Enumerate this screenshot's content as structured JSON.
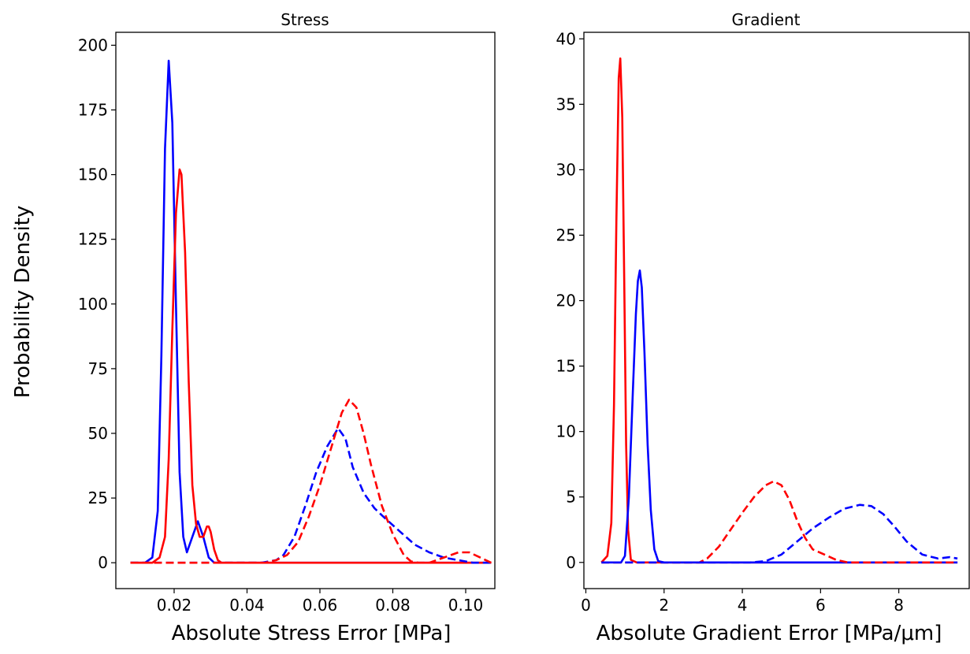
{
  "figure": {
    "ylabel": "Probability Density"
  },
  "chart_data": [
    {
      "type": "line",
      "title": "Stress",
      "xlabel": "Absolute Stress Error  [MPa]",
      "ylabel": "Probability Density",
      "xlim": [
        0.004,
        0.108
      ],
      "ylim": [
        -10,
        205
      ],
      "xticks": [
        0.02,
        0.04,
        0.06,
        0.08,
        0.1
      ],
      "xtick_labels": [
        "0.02",
        "0.04",
        "0.06",
        "0.08",
        "0.10"
      ],
      "yticks": [
        0,
        25,
        50,
        75,
        100,
        125,
        150,
        175,
        200
      ],
      "ytick_labels": [
        "0",
        "25",
        "50",
        "75",
        "100",
        "125",
        "150",
        "175",
        "200"
      ],
      "grid": false,
      "series": [
        {
          "color": "#0000ff",
          "dash": "solid",
          "x": [
            0.008,
            0.012,
            0.014,
            0.0155,
            0.0165,
            0.0175,
            0.0185,
            0.0195,
            0.0205,
            0.0215,
            0.0225,
            0.0235,
            0.025,
            0.0265,
            0.028,
            0.0295,
            0.031,
            0.033,
            0.04,
            0.107
          ],
          "y": [
            0,
            0,
            2,
            20,
            80,
            160,
            194,
            170,
            100,
            35,
            10,
            4,
            10,
            16,
            10,
            2,
            0,
            0,
            0,
            0
          ]
        },
        {
          "color": "#ff0000",
          "dash": "solid",
          "x": [
            0.008,
            0.014,
            0.016,
            0.0175,
            0.0185,
            0.0195,
            0.0205,
            0.0215,
            0.022,
            0.023,
            0.024,
            0.025,
            0.026,
            0.027,
            0.028,
            0.029,
            0.0295,
            0.03,
            0.031,
            0.032,
            0.033,
            0.04,
            0.107
          ],
          "y": [
            0,
            0,
            2,
            10,
            40,
            90,
            135,
            152,
            150,
            120,
            70,
            30,
            15,
            10,
            10,
            14,
            14,
            12,
            5,
            1,
            0,
            0,
            0
          ]
        },
        {
          "color": "#0000ff",
          "dash": "dashed",
          "x": [
            0.008,
            0.044,
            0.048,
            0.05,
            0.053,
            0.056,
            0.059,
            0.062,
            0.065,
            0.067,
            0.069,
            0.072,
            0.075,
            0.078,
            0.082,
            0.086,
            0.09,
            0.094,
            0.098,
            0.102,
            0.107
          ],
          "y": [
            0,
            0,
            1,
            3,
            10,
            22,
            35,
            45,
            52,
            48,
            37,
            27,
            21,
            17,
            12,
            7,
            4,
            2,
            1,
            0,
            0
          ]
        },
        {
          "color": "#ff0000",
          "dash": "dashed",
          "x": [
            0.008,
            0.045,
            0.048,
            0.051,
            0.054,
            0.057,
            0.06,
            0.063,
            0.066,
            0.068,
            0.07,
            0.072,
            0.074,
            0.077,
            0.08,
            0.083,
            0.085,
            0.087,
            0.09,
            0.094,
            0.098,
            0.101,
            0.104,
            0.107
          ],
          "y": [
            0,
            0,
            1,
            3,
            8,
            18,
            30,
            44,
            58,
            63,
            60,
            50,
            38,
            22,
            11,
            3,
            0.5,
            0,
            0,
            2,
            4,
            4,
            2,
            0
          ]
        }
      ]
    },
    {
      "type": "line",
      "title": "Gradient",
      "xlabel": "Absolute Gradient Error  [MPa/μm]",
      "ylabel": "",
      "xlim": [
        -0.05,
        9.8
      ],
      "ylim": [
        -2,
        40.5
      ],
      "xticks": [
        0,
        2,
        4,
        6,
        8
      ],
      "xtick_labels": [
        "0",
        "2",
        "4",
        "6",
        "8"
      ],
      "yticks": [
        0,
        5,
        10,
        15,
        20,
        25,
        30,
        35,
        40
      ],
      "ytick_labels": [
        "0",
        "5",
        "10",
        "15",
        "20",
        "25",
        "30",
        "35",
        "40"
      ],
      "grid": false,
      "series": [
        {
          "color": "#ff0000",
          "dash": "solid",
          "x": [
            0.4,
            0.55,
            0.65,
            0.72,
            0.78,
            0.84,
            0.88,
            0.93,
            0.98,
            1.03,
            1.08,
            1.15,
            1.3,
            9.5
          ],
          "y": [
            0,
            0.5,
            3,
            12,
            26,
            37,
            38.5,
            34,
            22,
            9,
            2.5,
            0.2,
            0,
            0
          ]
        },
        {
          "color": "#0000ff",
          "dash": "solid",
          "x": [
            0.4,
            0.9,
            1.0,
            1.1,
            1.2,
            1.28,
            1.33,
            1.38,
            1.43,
            1.5,
            1.58,
            1.66,
            1.75,
            1.85,
            2.0,
            9.5
          ],
          "y": [
            0,
            0,
            0.5,
            5,
            13,
            19,
            21.5,
            22.3,
            21,
            16,
            9,
            4,
            1,
            0.1,
            0,
            0
          ]
        },
        {
          "color": "#ff0000",
          "dash": "dashed",
          "x": [
            0.4,
            2.9,
            3.1,
            3.4,
            3.7,
            4.0,
            4.3,
            4.6,
            4.8,
            5.0,
            5.2,
            5.4,
            5.6,
            5.8,
            6.1,
            6.4,
            6.7,
            7.0,
            9.5
          ],
          "y": [
            0,
            0,
            0.3,
            1.2,
            2.5,
            3.8,
            5.0,
            5.9,
            6.2,
            5.9,
            4.8,
            3.2,
            1.9,
            1.0,
            0.6,
            0.2,
            0,
            0,
            0
          ]
        },
        {
          "color": "#0000ff",
          "dash": "dashed",
          "x": [
            0.4,
            4.2,
            4.6,
            5.0,
            5.4,
            5.8,
            6.2,
            6.6,
            7.0,
            7.3,
            7.6,
            7.9,
            8.2,
            8.6,
            9.0,
            9.3,
            9.5
          ],
          "y": [
            0,
            0,
            0.1,
            0.6,
            1.6,
            2.6,
            3.4,
            4.1,
            4.4,
            4.3,
            3.7,
            2.7,
            1.6,
            0.6,
            0.3,
            0.4,
            0.3
          ]
        }
      ]
    }
  ]
}
